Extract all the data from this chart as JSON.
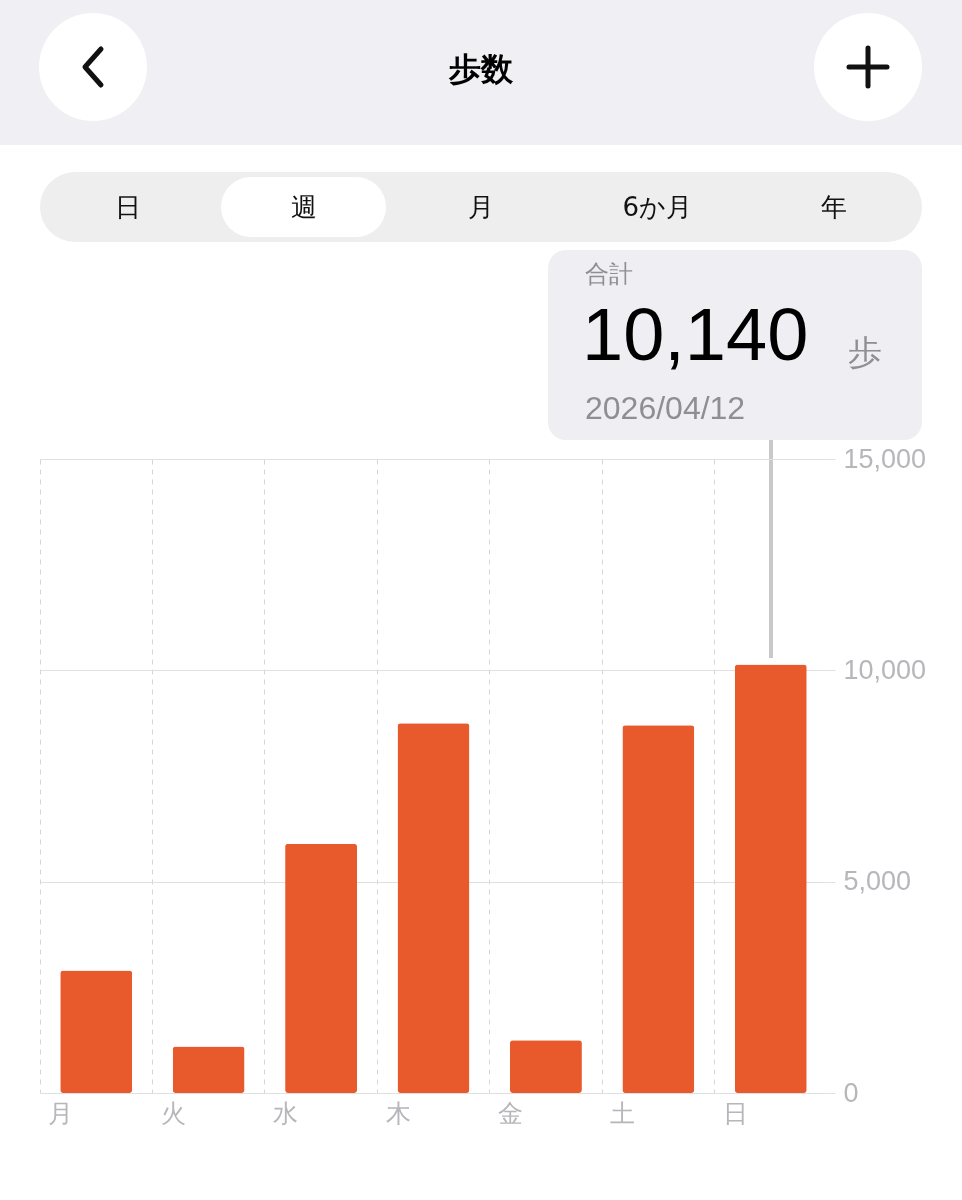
{
  "chart_data": {
    "type": "bar",
    "title": "歩数",
    "categories": [
      "月",
      "火",
      "水",
      "木",
      "金",
      "土",
      "日"
    ],
    "values": [
      2900,
      1100,
      5900,
      8750,
      1250,
      8700,
      10140
    ],
    "color": "#e8592c",
    "ylim": [
      0,
      15000
    ],
    "yticks": [
      0,
      {
        "value": 5000,
        "label": "5,000"
      },
      {
        "value": 10000,
        "label": "10,000"
      },
      {
        "value": 15000,
        "label": "15,000"
      }
    ],
    "grid": true,
    "annotations": [
      "日",
      "週",
      "月",
      "6か月",
      "年",
      "合計",
      "10,140",
      "歩",
      "2026/04/12"
    ]
  }
}
